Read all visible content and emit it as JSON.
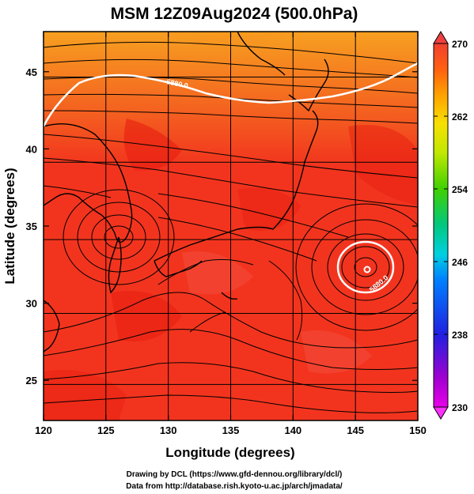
{
  "title": "MSM 12Z09Aug2024 (500.0hPa)",
  "x_axis": {
    "label": "Longitude (degrees)",
    "range": [
      120,
      150
    ],
    "ticks": [
      "120",
      "125",
      "130",
      "135",
      "140",
      "145",
      "150"
    ],
    "tick_values": [
      120,
      125,
      130,
      135,
      140,
      145,
      150
    ]
  },
  "y_axis": {
    "label": "Latitude  (degrees)",
    "range": [
      22.4,
      47.6
    ],
    "ticks": [
      "25",
      "30",
      "35",
      "40",
      "45"
    ],
    "tick_values": [
      25,
      30,
      35,
      40,
      45
    ]
  },
  "colorbar": {
    "ticks": [
      "230",
      "238",
      "246",
      "254",
      "262",
      "270"
    ],
    "tick_values": [
      230,
      238,
      246,
      254,
      262,
      270
    ],
    "range": [
      230,
      270
    ],
    "colors": [
      "#e800e8",
      "#8a00c8",
      "#2020e0",
      "#0070ff",
      "#00c8e0",
      "#00c870",
      "#30d000",
      "#b0e800",
      "#f0e000",
      "#ffb000",
      "#ff7000",
      "#f03020",
      "#f06060"
    ]
  },
  "contour": {
    "label": "5880.0",
    "color": "#ffffff"
  },
  "credits": {
    "line1": "Drawing by DCL (https://www.gfd-dennou.org/library/dcl/)",
    "line2": "Data from http://database.rish.kyoto-u.ac.jp/arch/jmadata/"
  },
  "colors": {
    "field": "#f2341e",
    "field_dark": "#e81e10",
    "field_warm": "#f77a18",
    "streamline": "#000000"
  }
}
